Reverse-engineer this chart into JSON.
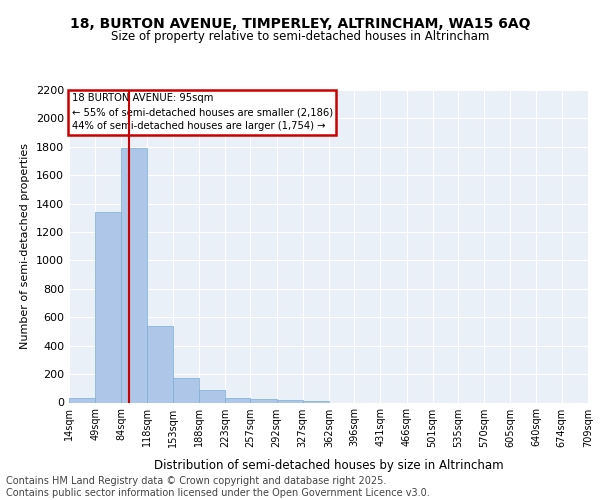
{
  "title1": "18, BURTON AVENUE, TIMPERLEY, ALTRINCHAM, WA15 6AQ",
  "title2": "Size of property relative to semi-detached houses in Altrincham",
  "xlabel": "Distribution of semi-detached houses by size in Altrincham",
  "ylabel": "Number of semi-detached properties",
  "property_size": 95,
  "property_label": "18 BURTON AVENUE: 95sqm",
  "smaller_pct": 55,
  "smaller_count": 2186,
  "larger_pct": 44,
  "larger_count": 1754,
  "bin_edges": [
    14,
    49,
    84,
    118,
    153,
    188,
    223,
    257,
    292,
    327,
    362,
    396,
    431,
    466,
    501,
    535,
    570,
    605,
    640,
    674,
    709
  ],
  "bin_values": [
    30,
    1340,
    1790,
    540,
    175,
    85,
    35,
    25,
    20,
    10,
    0,
    0,
    0,
    0,
    0,
    0,
    0,
    0,
    0,
    0
  ],
  "bar_color": "#aec6e8",
  "bar_edge_color": "#7aafd4",
  "vline_color": "#cc0000",
  "annotation_box_color": "#cc0000",
  "background_color": "#eaf0f8",
  "grid_color": "#ffffff",
  "tick_labels": [
    "14sqm",
    "49sqm",
    "84sqm",
    "118sqm",
    "153sqm",
    "188sqm",
    "223sqm",
    "257sqm",
    "292sqm",
    "327sqm",
    "362sqm",
    "396sqm",
    "431sqm",
    "466sqm",
    "501sqm",
    "535sqm",
    "570sqm",
    "605sqm",
    "640sqm",
    "674sqm",
    "709sqm"
  ],
  "ylim": [
    0,
    2200
  ],
  "yticks": [
    0,
    200,
    400,
    600,
    800,
    1000,
    1200,
    1400,
    1600,
    1800,
    2000,
    2200
  ],
  "footer": "Contains HM Land Registry data © Crown copyright and database right 2025.\nContains public sector information licensed under the Open Government Licence v3.0.",
  "footer_fontsize": 7,
  "annot_text_line1": "18 BURTON AVENUE: 95sqm",
  "annot_text_line2": "← 55% of semi-detached houses are smaller (2,186)",
  "annot_text_line3": "44% of semi-detached houses are larger (1,754) →"
}
